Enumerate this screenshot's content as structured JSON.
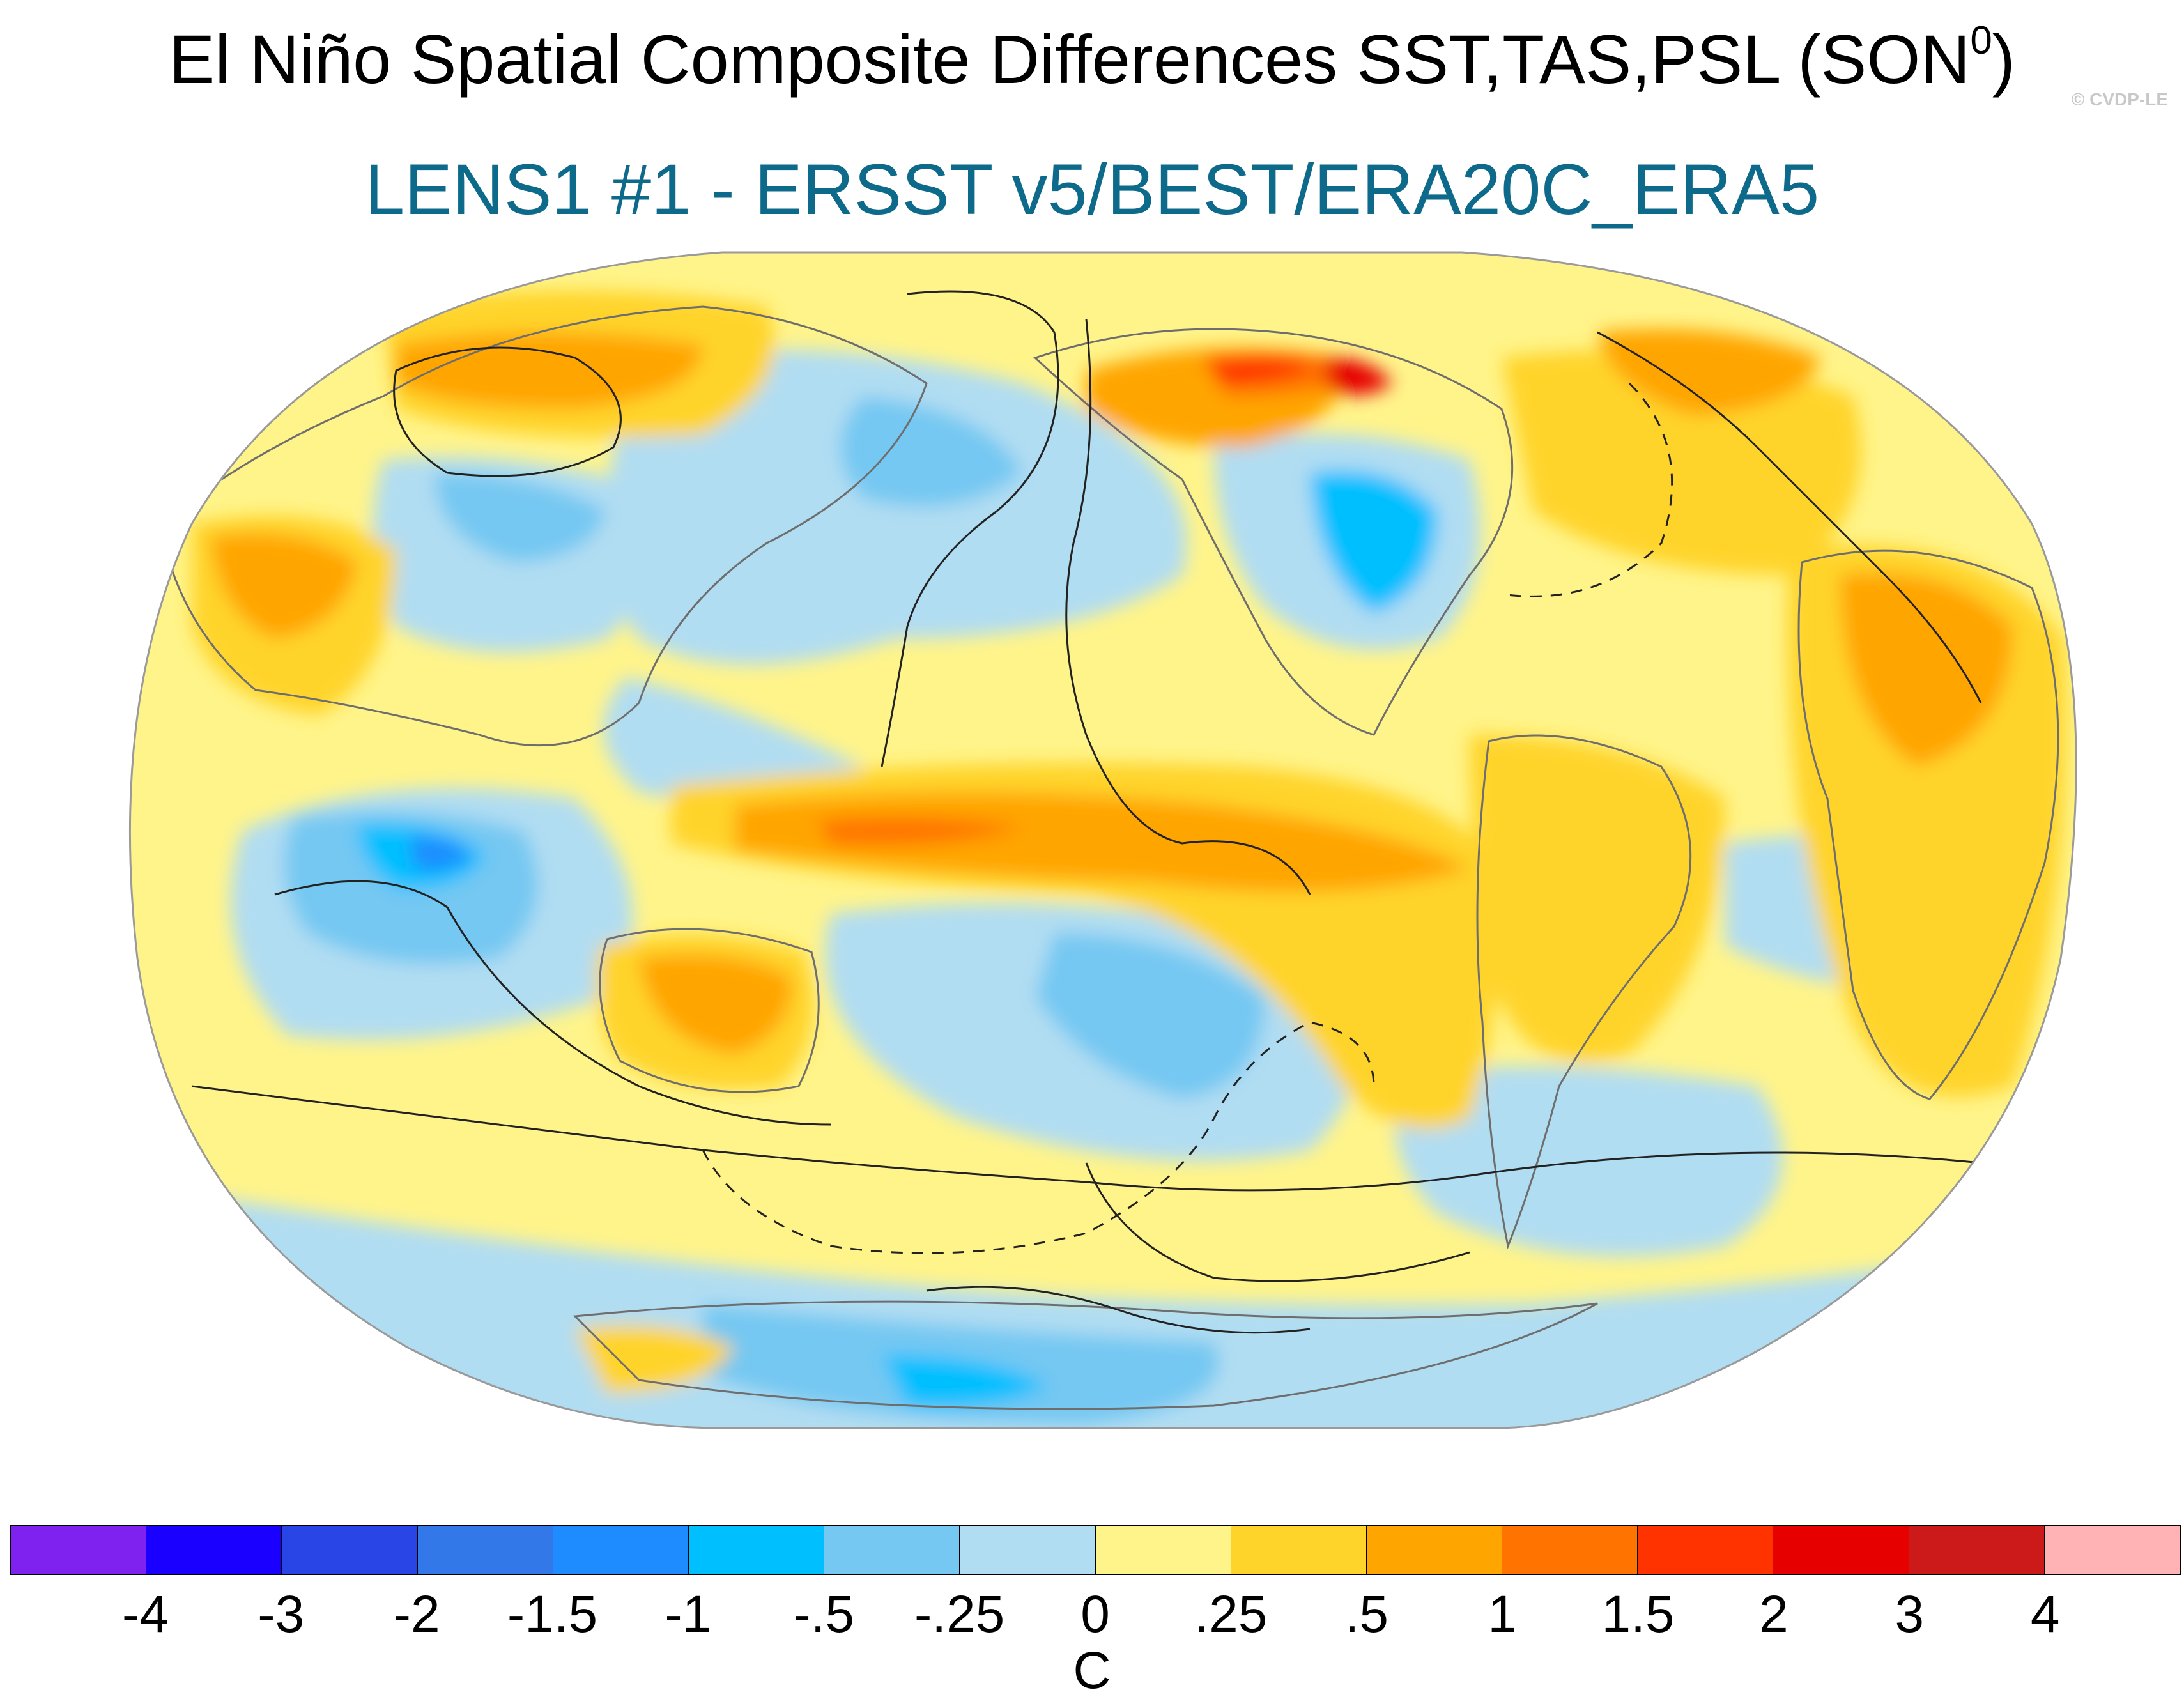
{
  "title": {
    "main": "El Niño Spatial Composite Differences SST,TAS,PSL (SON",
    "superscript": "0",
    "close": ")"
  },
  "credit": "© CVDP-LE",
  "subtitle": "LENS1 #1 - ERSST v5/BEST/ERA20C_ERA5",
  "colorbar": {
    "units": "C",
    "labels": [
      "-4",
      "-3",
      "-2",
      "-1.5",
      "-1",
      "-.5",
      "-.25",
      "0",
      ".25",
      ".5",
      "1",
      "1.5",
      "2",
      "3",
      "4"
    ],
    "colors": [
      "#7f22f0",
      "#1a00ff",
      "#2a45e6",
      "#3278e8",
      "#1e8cff",
      "#00bfff",
      "#74c8f2",
      "#b1ddf2",
      "#fff48a",
      "#ffd42a",
      "#ffa500",
      "#ff7300",
      "#ff3300",
      "#e60000",
      "#cc1a1a",
      "#ffb3b5"
    ]
  },
  "map": {
    "projection": "robinson",
    "background_color": "#fff48a"
  }
}
